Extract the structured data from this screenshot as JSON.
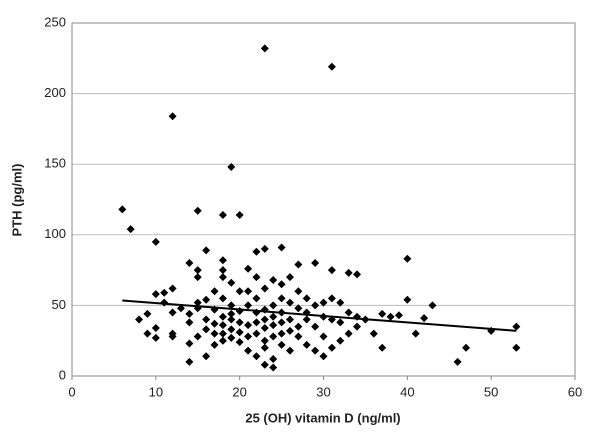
{
  "chart_data": {
    "type": "scatter",
    "xlabel": "25 (OH) vitamin D (ng/ml)",
    "ylabel": "PTH (pg/ml)",
    "x": [
      6,
      7,
      8,
      9,
      9,
      10,
      10,
      10,
      10,
      11,
      11,
      12,
      12,
      12,
      12,
      12,
      13,
      14,
      14,
      14,
      14,
      14,
      15,
      15,
      15,
      15,
      15,
      15,
      16,
      16,
      16,
      16,
      16,
      17,
      17,
      17,
      17,
      17,
      18,
      18,
      18,
      18,
      18,
      18,
      18,
      18,
      18,
      19,
      19,
      19,
      19,
      19,
      19,
      19,
      20,
      20,
      20,
      20,
      20,
      20,
      21,
      21,
      21,
      21,
      21,
      21,
      22,
      22,
      22,
      22,
      22,
      22,
      22,
      23,
      23,
      23,
      23,
      23,
      23,
      23,
      23,
      23,
      24,
      24,
      24,
      24,
      24,
      24,
      24,
      25,
      25,
      25,
      25,
      25,
      25,
      25,
      26,
      26,
      26,
      26,
      26,
      27,
      27,
      27,
      27,
      27,
      28,
      28,
      28,
      28,
      29,
      29,
      29,
      29,
      30,
      30,
      30,
      30,
      31,
      31,
      31,
      31,
      31,
      32,
      32,
      32,
      33,
      33,
      33,
      34,
      34,
      34,
      35,
      36,
      37,
      37,
      38,
      39,
      40,
      40,
      41,
      42,
      43,
      46,
      47,
      50,
      53,
      53
    ],
    "values": [
      118,
      104,
      40,
      44,
      30,
      95,
      58,
      34,
      27,
      59,
      52,
      184,
      62,
      45,
      30,
      28,
      48,
      80,
      44,
      38,
      23,
      10,
      117,
      75,
      70,
      52,
      48,
      28,
      89,
      54,
      40,
      33,
      14,
      60,
      47,
      37,
      30,
      22,
      114,
      82,
      75,
      70,
      55,
      42,
      36,
      30,
      25,
      148,
      66,
      50,
      44,
      40,
      33,
      27,
      114,
      60,
      46,
      38,
      31,
      24,
      76,
      60,
      50,
      36,
      28,
      18,
      88,
      70,
      55,
      45,
      38,
      30,
      14,
      232,
      90,
      62,
      47,
      40,
      34,
      25,
      20,
      8,
      68,
      50,
      42,
      36,
      28,
      12,
      6,
      91,
      65,
      55,
      45,
      38,
      30,
      22,
      70,
      52,
      40,
      32,
      18,
      79,
      60,
      48,
      35,
      28,
      55,
      45,
      40,
      22,
      80,
      50,
      35,
      18,
      52,
      42,
      28,
      14,
      219,
      75,
      55,
      40,
      20,
      52,
      38,
      25,
      73,
      45,
      30,
      72,
      42,
      35,
      40,
      30,
      20,
      44,
      42,
      43,
      83,
      54,
      30,
      41,
      50,
      10,
      20,
      32,
      35,
      20
    ],
    "color": "#000000",
    "trend_line": {
      "x": [
        6,
        53
      ],
      "values": [
        53.5,
        32
      ],
      "color": "#000000"
    },
    "xlim": [
      0,
      60
    ],
    "xticks": [
      0,
      10,
      20,
      30,
      40,
      50,
      60
    ],
    "ylim": [
      0,
      250
    ],
    "yticks": [
      0,
      50,
      100,
      150,
      200,
      250
    ],
    "grid": true
  }
}
